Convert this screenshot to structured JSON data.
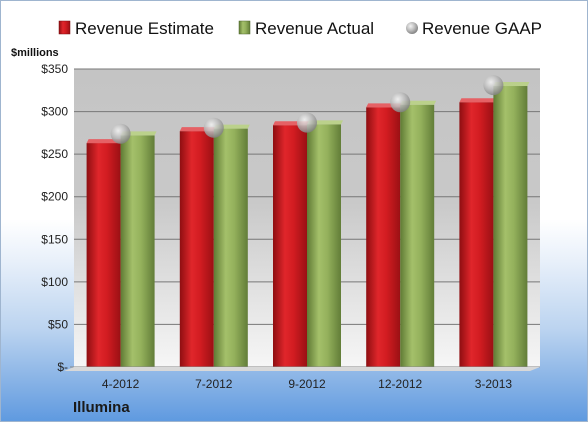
{
  "chart_data": {
    "type": "bar",
    "ylabel": "$millions",
    "company": "Illumina",
    "categories": [
      "4-2012",
      "7-2012",
      "9-2012",
      "12-2012",
      "3-2013"
    ],
    "series": [
      {
        "name": "Revenue Estimate",
        "kind": "bar",
        "color": "#c8171c",
        "values": [
          263,
          277,
          284,
          305,
          311
        ]
      },
      {
        "name": "Revenue Actual",
        "kind": "bar",
        "color": "#8fac58",
        "values": [
          272,
          280,
          285,
          308,
          330
        ]
      },
      {
        "name": "Revenue GAAP",
        "kind": "marker",
        "color": "#b0b0b0",
        "values": [
          274,
          281,
          287,
          311,
          331
        ]
      }
    ],
    "ylim": [
      0,
      350
    ],
    "yticks": [
      0,
      50,
      100,
      150,
      200,
      250,
      300,
      350
    ],
    "ytick_labels": [
      "$-",
      "$50",
      "$100",
      "$150",
      "$200",
      "$250",
      "$300",
      "$350"
    ],
    "grid": true,
    "legend_position": "top"
  }
}
